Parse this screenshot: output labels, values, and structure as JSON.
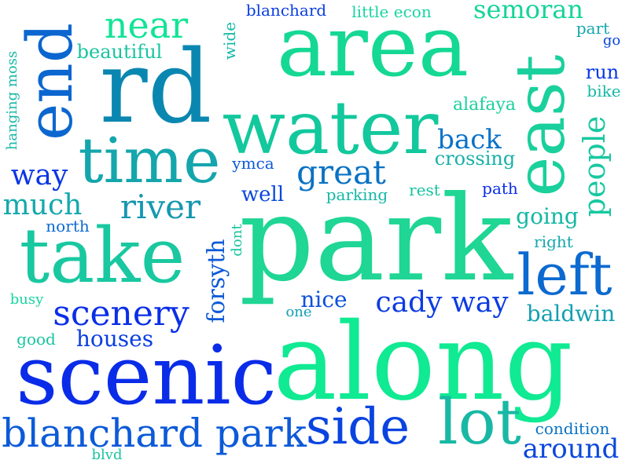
{
  "cloud": {
    "park": {
      "text": "park",
      "color": "#1fd694"
    },
    "along": {
      "text": "along",
      "color": "#10ea92"
    },
    "area": {
      "text": "area",
      "color": "#14d894"
    },
    "scenic": {
      "text": "scenic",
      "color": "#0a2ce8"
    },
    "rd": {
      "text": "rd",
      "color": "#0a87b0"
    },
    "water": {
      "text": "water",
      "color": "#12c89c"
    },
    "take": {
      "text": "take",
      "color": "#19c8a0"
    },
    "end": {
      "text": "end",
      "color": "#0c66d0"
    },
    "east": {
      "text": "east",
      "color": "#1ad09c"
    },
    "time": {
      "text": "time",
      "color": "#14a6ac"
    },
    "lot": {
      "text": "lot",
      "color": "#18b8a4"
    },
    "side": {
      "text": "side",
      "color": "#0a44e0"
    },
    "left": {
      "text": "left",
      "color": "#0c6ad0"
    },
    "blanchard_park": {
      "text": "blanchard park",
      "color": "#0c5ad8"
    },
    "near": {
      "text": "near",
      "color": "#12e496"
    },
    "great": {
      "text": "great",
      "color": "#0a72c4"
    },
    "river": {
      "text": "river",
      "color": "#1597b0"
    },
    "scenery": {
      "text": "scenery",
      "color": "#0a2ee8"
    },
    "people": {
      "text": "people",
      "color": "#18c8a0"
    },
    "way": {
      "text": "way",
      "color": "#0a36e4"
    },
    "much": {
      "text": "much",
      "color": "#14a8ac"
    },
    "cady_way": {
      "text": "cady way",
      "color": "#0c3ce2"
    },
    "semoran": {
      "text": "semoran",
      "color": "#14d498"
    },
    "back": {
      "text": "back",
      "color": "#0a72c8"
    },
    "around": {
      "text": "around",
      "color": "#0a48dc"
    },
    "forsyth": {
      "text": "forsyth",
      "color": "#0c5ad8"
    },
    "houses": {
      "text": "houses",
      "color": "#0a3ee2"
    },
    "baldwin": {
      "text": "baldwin",
      "color": "#14a0b0"
    },
    "nice": {
      "text": "nice",
      "color": "#0c50dc"
    },
    "going": {
      "text": "going",
      "color": "#14b8a4"
    },
    "well": {
      "text": "well",
      "color": "#0a48dc"
    },
    "crossing": {
      "text": "crossing",
      "color": "#18b0a8"
    },
    "beautiful": {
      "text": "beautiful",
      "color": "#18c4a0"
    },
    "wide": {
      "text": "wide",
      "color": "#16b8a6"
    },
    "blanchard": {
      "text": "blanchard",
      "color": "#0a3ee2"
    },
    "little_econ": {
      "text": "little econ",
      "color": "#1ad4a0"
    },
    "part": {
      "text": "part",
      "color": "#14a8ac"
    },
    "go": {
      "text": "go",
      "color": "#0a48dc"
    },
    "run": {
      "text": "run",
      "color": "#0a36e4"
    },
    "bike": {
      "text": "bike",
      "color": "#16b8a6"
    },
    "alafaya": {
      "text": "alafaya",
      "color": "#1ad09c"
    },
    "hanging_moss": {
      "text": "hanging moss",
      "color": "#16b8a6"
    },
    "ymca": {
      "text": "ymca",
      "color": "#0c5ad8"
    },
    "parking": {
      "text": "parking",
      "color": "#16b8a6"
    },
    "rest": {
      "text": "rest",
      "color": "#18c4a0"
    },
    "path": {
      "text": "path",
      "color": "#0a2ee8"
    },
    "north": {
      "text": "north",
      "color": "#0c6ad0"
    },
    "dont": {
      "text": "dont",
      "color": "#18c4a0"
    },
    "right": {
      "text": "right",
      "color": "#14a8ac"
    },
    "busy": {
      "text": "busy",
      "color": "#1ad4a0"
    },
    "one": {
      "text": "one",
      "color": "#14a0b0"
    },
    "good": {
      "text": "good",
      "color": "#18c4a0"
    },
    "condition": {
      "text": "condition",
      "color": "#0a72c4"
    },
    "blvd": {
      "text": "blvd",
      "color": "#18c4a0"
    }
  }
}
